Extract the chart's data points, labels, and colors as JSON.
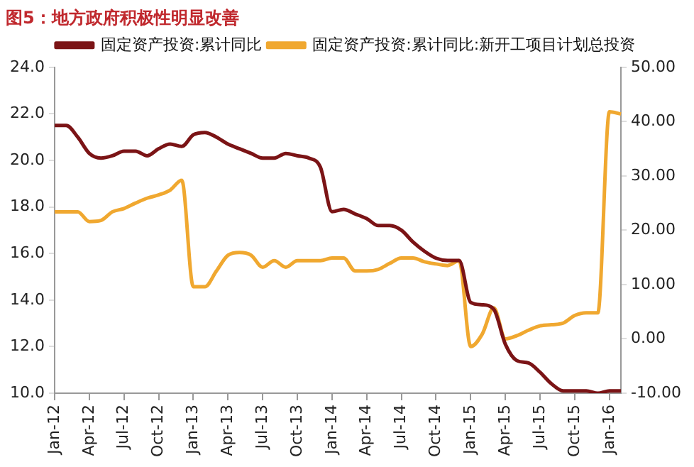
{
  "chart_data": {
    "type": "line",
    "title": "图5：地方政府积极性明显改善",
    "categories": [
      "Jan-12",
      null,
      null,
      "Apr-12",
      null,
      null,
      "Jul-12",
      null,
      null,
      "Oct-12",
      null,
      null,
      "Jan-13",
      null,
      null,
      "Apr-13",
      null,
      null,
      "Jul-13",
      null,
      null,
      "Oct-13",
      null,
      null,
      "Jan-14",
      null,
      null,
      "Apr-14",
      null,
      null,
      "Jul-14",
      null,
      null,
      "Oct-14",
      null,
      null,
      "Jan-15",
      null,
      null,
      "Apr-15",
      null,
      null,
      "Jul-15",
      null,
      null,
      "Oct-15",
      null,
      null,
      "Jan-16",
      null
    ],
    "series": [
      {
        "name": "固定资产投资:累计同比",
        "color": "#7b1416",
        "values": [
          21.5,
          21.5,
          21.0,
          20.3,
          20.1,
          20.2,
          20.4,
          20.4,
          20.2,
          20.5,
          20.7,
          20.6,
          21.1,
          21.2,
          21.0,
          20.7,
          20.5,
          20.3,
          20.1,
          20.1,
          20.3,
          20.2,
          20.1,
          19.7,
          17.8,
          17.9,
          17.7,
          17.5,
          17.2,
          17.2,
          17.0,
          16.5,
          16.1,
          15.8,
          15.7,
          15.7,
          13.9,
          13.8,
          13.6,
          12.1,
          11.4,
          11.3,
          10.9,
          10.4,
          10.1,
          10.1,
          10.1,
          10.0,
          10.1,
          10.1
        ]
      },
      {
        "name": "固定资产投资:累计同比:新开工项目计划总投资",
        "color": "#f0a830",
        "axis": "y2",
        "values": [
          23.4,
          23.4,
          23.4,
          21.6,
          21.8,
          23.4,
          24.0,
          25.0,
          25.9,
          26.5,
          27.4,
          29.2,
          9.6,
          9.6,
          12.5,
          15.4,
          15.9,
          15.4,
          13.2,
          14.4,
          13.2,
          14.4,
          14.4,
          14.4,
          14.9,
          14.9,
          12.5,
          12.5,
          12.8,
          13.9,
          14.9,
          14.9,
          14.2,
          13.8,
          13.5,
          14.4,
          -1.4,
          0.9,
          5.7,
          0.0,
          0.6,
          1.6,
          2.4,
          2.6,
          2.9,
          4.3,
          4.8,
          4.8,
          41.8,
          41.4
        ]
      }
    ],
    "ylim": [
      10,
      24
    ],
    "yticks": [
      {
        "value": 10,
        "label": "10.0"
      },
      {
        "value": 12,
        "label": "12.0"
      },
      {
        "value": 14,
        "label": "14.0"
      },
      {
        "value": 16,
        "label": "16.0"
      },
      {
        "value": 18,
        "label": "18.0"
      },
      {
        "value": 20,
        "label": "20.0"
      },
      {
        "value": 22,
        "label": "22.0"
      },
      {
        "value": 24,
        "label": "24.0"
      }
    ],
    "y2lim": [
      -10,
      50
    ],
    "y2ticks": [
      {
        "value": -10,
        "label": "-10.00"
      },
      {
        "value": 0,
        "label": "0.00"
      },
      {
        "value": 10,
        "label": "10.00"
      },
      {
        "value": 20,
        "label": "20.00"
      },
      {
        "value": 30,
        "label": "30.00"
      },
      {
        "value": 40,
        "label": "40.00"
      },
      {
        "value": 50,
        "label": "50.00"
      }
    ],
    "grid": false,
    "legend": "top",
    "marker": "none"
  }
}
